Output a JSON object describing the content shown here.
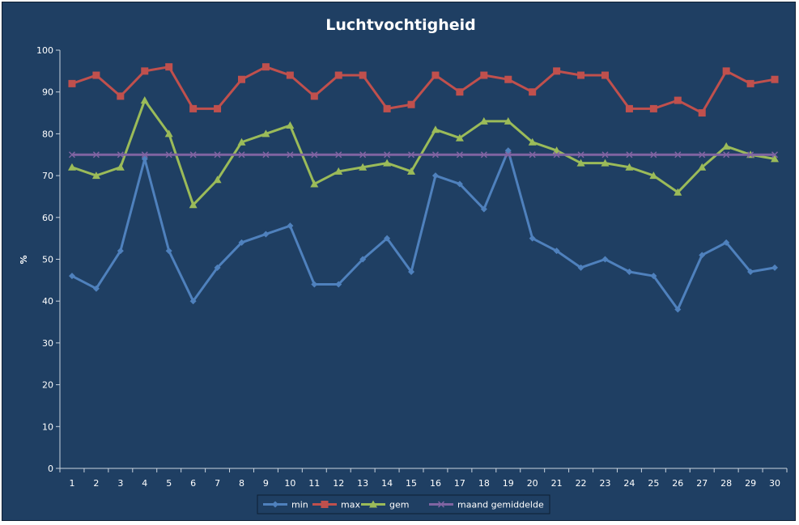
{
  "chart_data": {
    "type": "line",
    "title": "Luchtvochtigheid",
    "xlabel": "",
    "ylabel": "%",
    "ylim": [
      0,
      100
    ],
    "ytick_step": 10,
    "categories": [
      "1",
      "2",
      "3",
      "4",
      "5",
      "6",
      "7",
      "8",
      "9",
      "10",
      "11",
      "12",
      "13",
      "14",
      "15",
      "16",
      "17",
      "18",
      "19",
      "20",
      "21",
      "22",
      "23",
      "24",
      "25",
      "26",
      "27",
      "28",
      "29",
      "30"
    ],
    "legend_position": "bottom-center",
    "grid": false,
    "series": [
      {
        "name": "min",
        "color": "#4f81bd",
        "marker": "diamond",
        "values": [
          46,
          43,
          52,
          74,
          52,
          40,
          48,
          54,
          56,
          58,
          44,
          44,
          50,
          55,
          47,
          70,
          68,
          62,
          76,
          55,
          52,
          48,
          50,
          47,
          46,
          38,
          51,
          54,
          47,
          48
        ]
      },
      {
        "name": "max",
        "color": "#c0504d",
        "marker": "square",
        "values": [
          92,
          94,
          89,
          95,
          96,
          86,
          86,
          93,
          96,
          94,
          89,
          94,
          94,
          86,
          87,
          94,
          90,
          94,
          93,
          90,
          95,
          94,
          94,
          86,
          86,
          88,
          85,
          95,
          92,
          93
        ]
      },
      {
        "name": "gem",
        "color": "#9bbb59",
        "marker": "triangle",
        "values": [
          72,
          70,
          72,
          88,
          80,
          63,
          69,
          78,
          80,
          82,
          68,
          71,
          72,
          73,
          71,
          81,
          79,
          83,
          83,
          78,
          76,
          73,
          73,
          72,
          70,
          66,
          72,
          77,
          75,
          74
        ]
      },
      {
        "name": "maand gemiddelde",
        "color": "#8064a2",
        "marker": "x",
        "values": [
          75,
          75,
          75,
          75,
          75,
          75,
          75,
          75,
          75,
          75,
          75,
          75,
          75,
          75,
          75,
          75,
          75,
          75,
          75,
          75,
          75,
          75,
          75,
          75,
          75,
          75,
          75,
          75,
          75,
          75
        ]
      }
    ]
  }
}
